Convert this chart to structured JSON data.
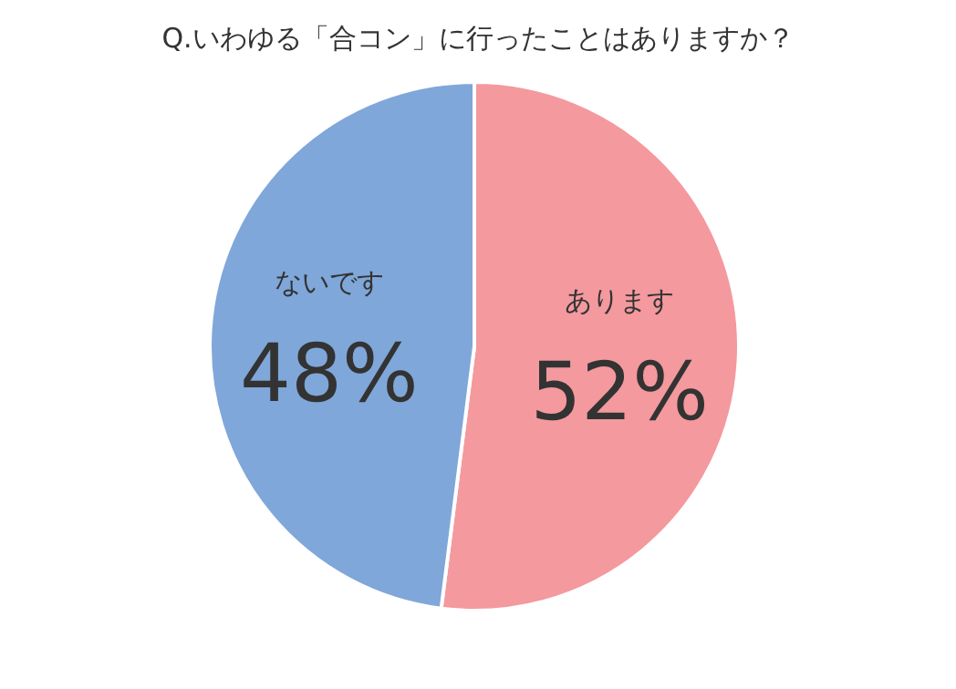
{
  "chart_data": {
    "type": "pie",
    "title": "Q.いわゆる「合コン」に行ったことはありますか？",
    "categories": [
      "あります",
      "ないです"
    ],
    "values": [
      52,
      48
    ],
    "value_labels": [
      "52%",
      "48%"
    ],
    "colors": [
      "#f4999e",
      "#7fa7d9"
    ]
  }
}
